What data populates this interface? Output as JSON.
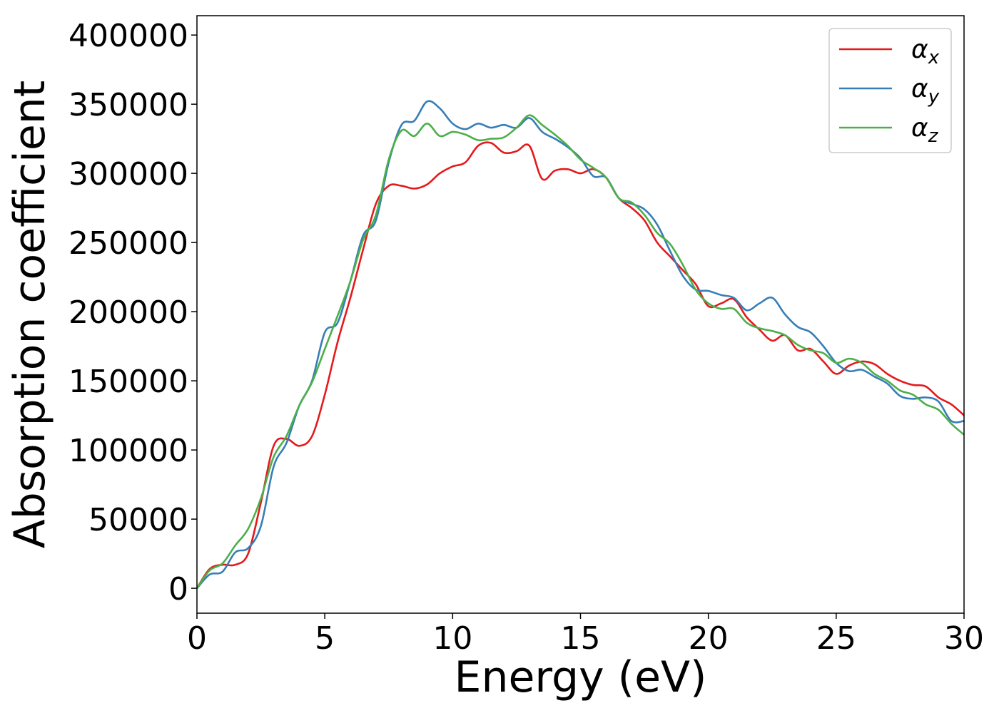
{
  "chart_data": {
    "type": "line",
    "title": "",
    "xlabel": "Energy (eV)",
    "ylabel": "Absorption coefficient",
    "xlim": [
      0,
      30
    ],
    "ylim": [
      -18000,
      414000
    ],
    "xticks": [
      0,
      5,
      10,
      15,
      20,
      25,
      30
    ],
    "yticks": [
      0,
      50000,
      100000,
      150000,
      200000,
      250000,
      300000,
      350000,
      400000
    ],
    "grid": false,
    "legend": "top-right",
    "x": [
      0,
      0.5,
      1,
      1.5,
      2,
      2.5,
      3,
      3.5,
      4,
      4.5,
      5,
      5.5,
      6,
      6.5,
      7,
      7.5,
      8,
      8.5,
      9,
      9.5,
      10,
      10.5,
      11,
      11.5,
      12,
      12.5,
      13,
      13.5,
      14,
      14.5,
      15,
      15.5,
      16,
      16.5,
      17,
      17.5,
      18,
      18.5,
      19,
      19.5,
      20,
      20.5,
      21,
      21.5,
      22,
      22.5,
      23,
      23.5,
      24,
      24.5,
      25,
      25.5,
      26,
      26.5,
      27,
      27.5,
      28,
      28.5,
      29,
      29.5,
      30
    ],
    "series": [
      {
        "name": "αx",
        "subscript": "x",
        "color": "#e41a1c",
        "values": [
          0,
          14000,
          17000,
          17000,
          25000,
          62000,
          103000,
          108000,
          103000,
          110000,
          140000,
          178000,
          210000,
          245000,
          278000,
          291000,
          291000,
          289000,
          292000,
          300000,
          305000,
          308000,
          320000,
          322000,
          315000,
          316000,
          320000,
          296000,
          302000,
          303000,
          300000,
          303000,
          297000,
          282000,
          275000,
          266000,
          250000,
          240000,
          230000,
          220000,
          204000,
          206000,
          209000,
          196000,
          187000,
          179000,
          183000,
          172000,
          173000,
          164000,
          155000,
          161000,
          164000,
          162000,
          155000,
          150000,
          147000,
          146000,
          138000,
          133000,
          125000
        ]
      },
      {
        "name": "αy",
        "subscript": "y",
        "color": "#377eb8",
        "values": [
          0,
          10000,
          12000,
          26000,
          29000,
          45000,
          88000,
          105000,
          132000,
          150000,
          185000,
          192000,
          222000,
          255000,
          266000,
          308000,
          335000,
          338000,
          352000,
          347000,
          336000,
          332000,
          336000,
          333000,
          335000,
          333000,
          340000,
          330000,
          325000,
          319000,
          311000,
          298000,
          297000,
          282000,
          278000,
          274000,
          263000,
          244000,
          226000,
          216000,
          215000,
          212000,
          210000,
          201000,
          206000,
          210000,
          198000,
          189000,
          185000,
          175000,
          163000,
          157000,
          158000,
          153000,
          148000,
          139000,
          137000,
          138000,
          135000,
          121000,
          121000
        ]
      },
      {
        "name": "αz",
        "subscript": "z",
        "color": "#4daf4a",
        "values": [
          0,
          13000,
          18000,
          31000,
          43000,
          65000,
          95000,
          110000,
          132000,
          149000,
          173000,
          197000,
          222000,
          252000,
          270000,
          310000,
          331000,
          327000,
          336000,
          327000,
          330000,
          328000,
          324000,
          325000,
          326000,
          333000,
          342000,
          335000,
          328000,
          320000,
          310000,
          304000,
          297000,
          282000,
          279000,
          270000,
          257000,
          249000,
          234000,
          216000,
          206000,
          202000,
          202000,
          192000,
          188000,
          186000,
          183000,
          176000,
          172000,
          170000,
          163000,
          166000,
          163000,
          155000,
          150000,
          143000,
          140000,
          133000,
          129000,
          119000,
          111000
        ]
      }
    ]
  }
}
